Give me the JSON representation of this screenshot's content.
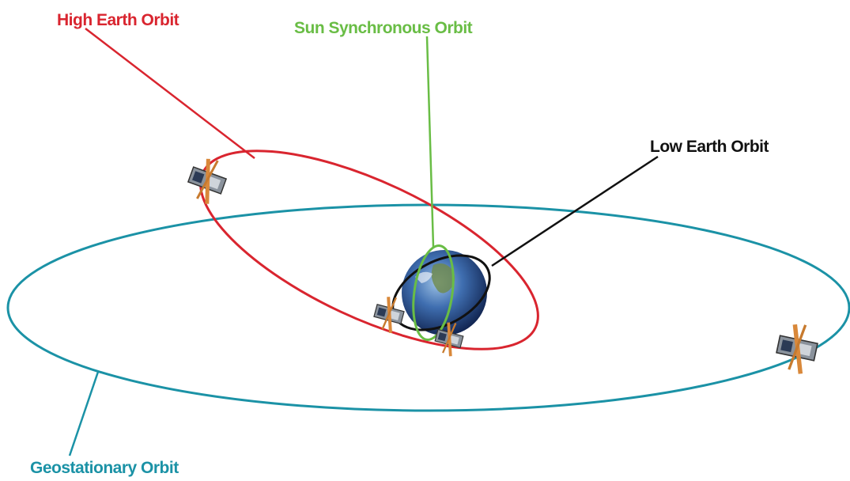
{
  "orbits": [
    {
      "label": "High Earth Orbit"
    },
    {
      "label": "Sun Synchronous Orbit"
    },
    {
      "label": "Low Earth Orbit"
    },
    {
      "label": "Geostationary Orbit"
    }
  ]
}
